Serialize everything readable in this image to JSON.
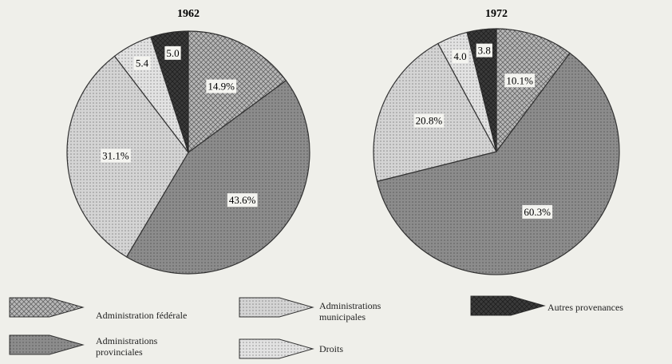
{
  "legend": {
    "labels": [
      "Administration fédérale",
      "Administrations provinciales",
      "Administrations municipales",
      "Droits",
      "Autres provenances"
    ],
    "colors": [
      "#b8b8b8",
      "#8c8c8c",
      "#d4d4d4",
      "#e2e2e2",
      "#3a3a3a"
    ]
  },
  "chart_data": [
    {
      "type": "pie",
      "title": "1962",
      "values": [
        14.9,
        43.6,
        31.1,
        5.4,
        5.0
      ],
      "value_labels": [
        "14.9%",
        "43.6%",
        "31.1%",
        "5.4",
        "5.0"
      ]
    },
    {
      "type": "pie",
      "title": "1972",
      "values": [
        10.1,
        60.3,
        20.8,
        4.0,
        3.8
      ],
      "value_labels": [
        "10.1%",
        "60.3%",
        "20.8%",
        "4.0",
        "3.8"
      ]
    }
  ]
}
